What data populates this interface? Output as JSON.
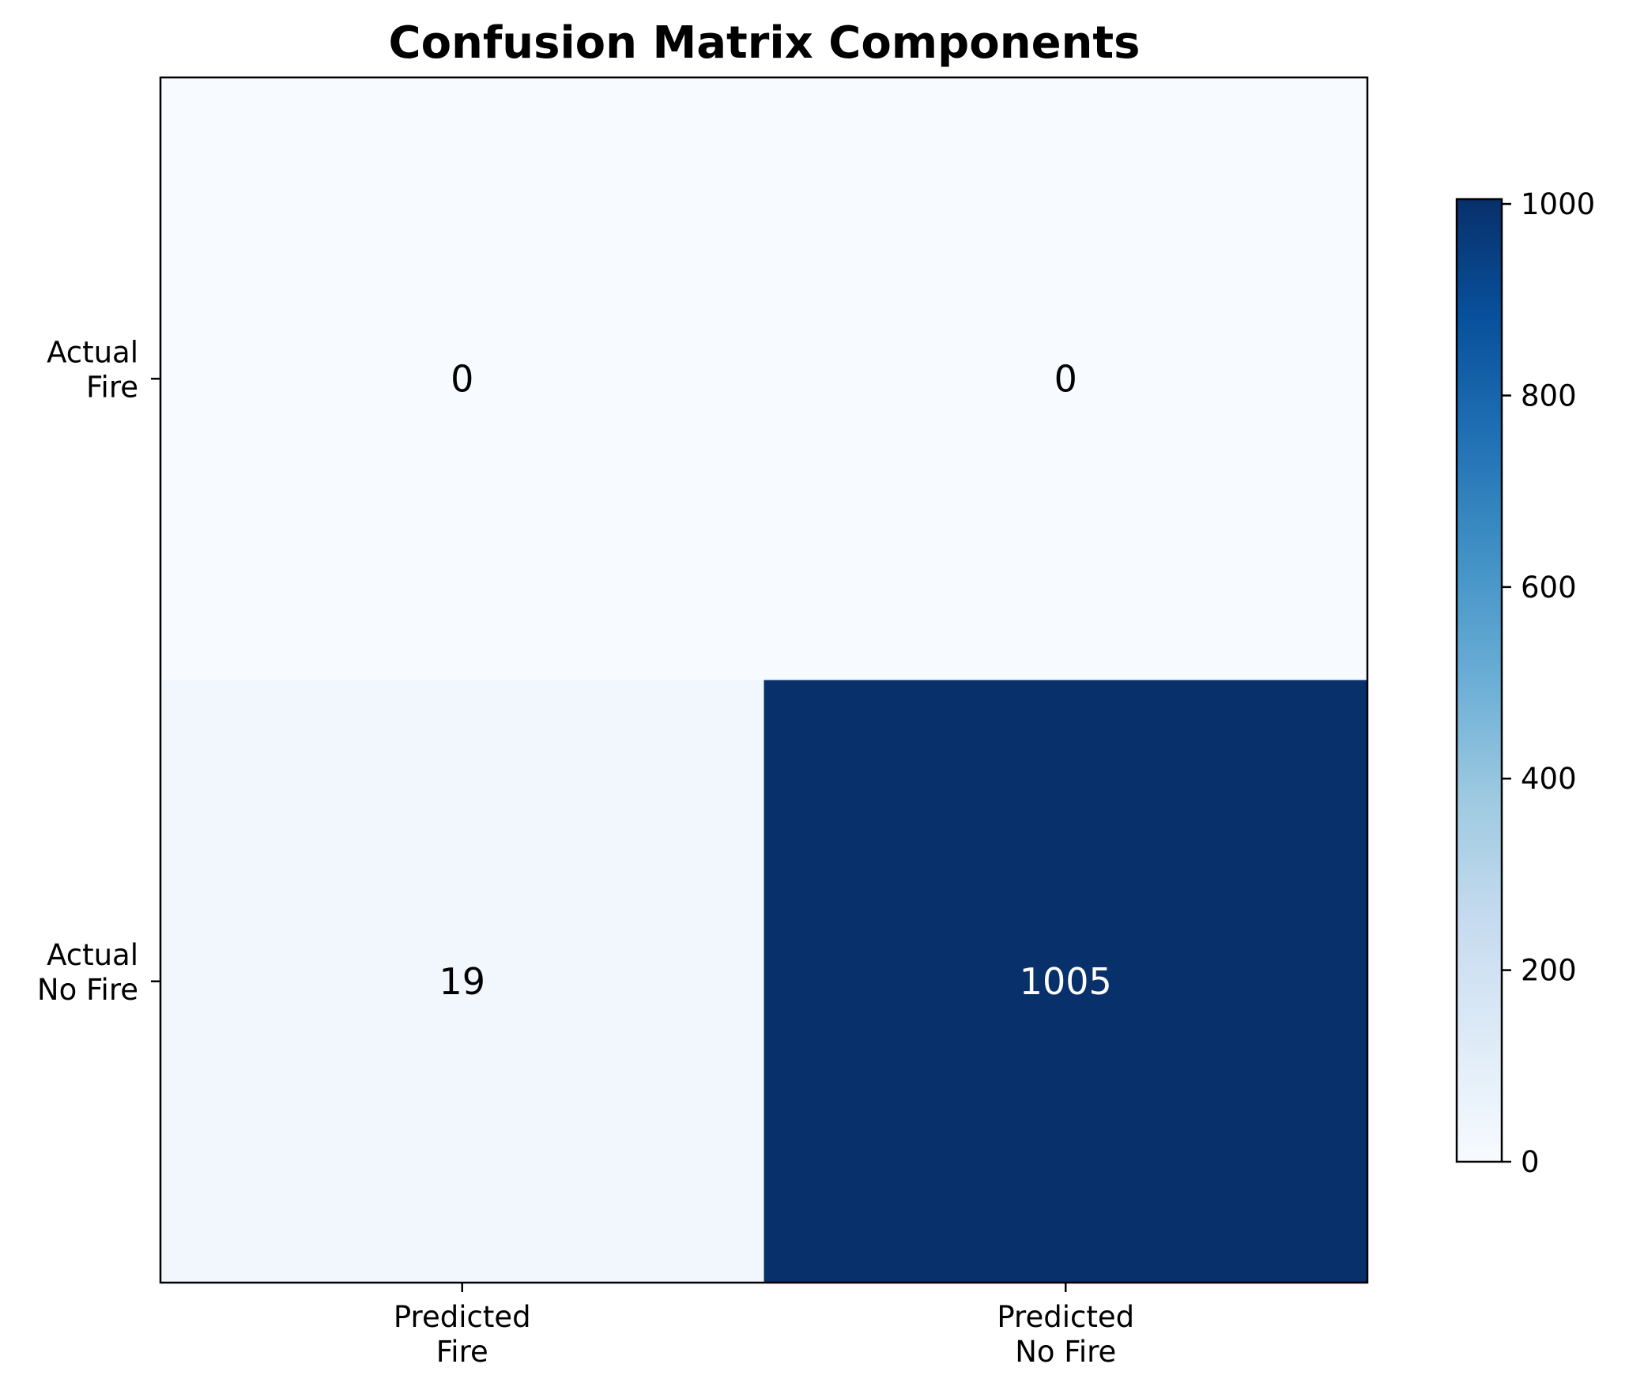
{
  "chart_data": {
    "type": "heatmap",
    "title": "Confusion Matrix Components",
    "rows": [
      [
        "Actual",
        "Fire"
      ],
      [
        "Actual",
        "No Fire"
      ]
    ],
    "columns": [
      [
        "Predicted",
        "Fire"
      ],
      [
        "Predicted",
        "No Fire"
      ]
    ],
    "values": [
      [
        0,
        0
      ],
      [
        19,
        1005
      ]
    ],
    "colormap": "Blues",
    "colorbar": {
      "range": [
        0,
        1005
      ],
      "ticks": [
        0,
        200,
        400,
        600,
        800,
        1000
      ]
    },
    "colors": {
      "cell_min": "#f7fbff",
      "cell_low": "#f1f7fd",
      "cell_max": "#08306b",
      "label_dark": "#000000",
      "label_light": "#ffffff"
    }
  }
}
